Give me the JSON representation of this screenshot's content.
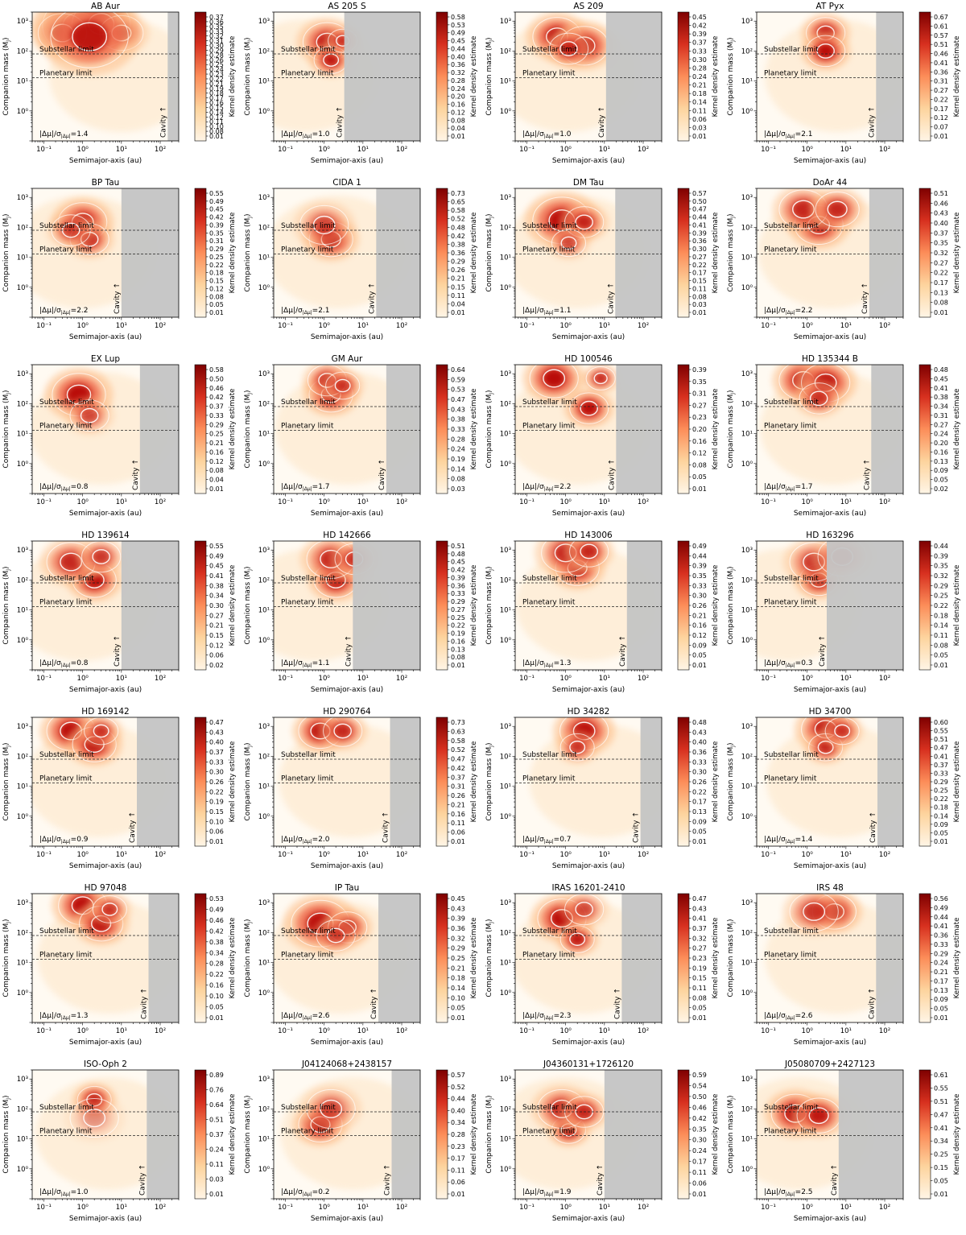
{
  "figure": {
    "xlabel": "Semimajor-axis (au)",
    "ylabel": "Companion mass (M",
    "ylabel_sub": "J",
    "ylabel_close": ")",
    "cbar_label": "Kernel density estimate",
    "substellar_label": "Substellar limit",
    "planetary_label": "Planetary limit",
    "cavity_label": "Cavity ↑",
    "colors": {
      "cavity": "#c4c4c4",
      "kde_low": "#fff5e6",
      "kde_high": "#7f0000",
      "contour": "#ffffff"
    }
  },
  "chart_data": {
    "type": "heatmap",
    "description_axis": "log-log KDE of companion mass vs semimajor axis",
    "x_axis": {
      "scale": "log",
      "range": [
        0.05,
        300
      ],
      "ticks": [
        0.1,
        1,
        10,
        100
      ],
      "tick_labels": [
        "10⁻¹",
        "10⁰",
        "10¹",
        "10²"
      ]
    },
    "y_axis": {
      "scale": "log",
      "range": [
        0.1,
        2000
      ],
      "ticks": [
        1,
        10,
        100,
        1000
      ],
      "tick_labels": [
        "10⁰",
        "10¹",
        "10²",
        "10³"
      ]
    },
    "substellar_limit_mj": 80,
    "planetary_limit_mj": 13,
    "panels": [
      {
        "title": "AB Aur",
        "cavity": 156,
        "ratio": "1.4",
        "cbar": [
          "0.37",
          "0.36",
          "0.35",
          "0.33",
          "0.32",
          "0.31",
          "0.30",
          "0.29",
          "0.28",
          "0.26",
          "0.25",
          "0.24",
          "0.23",
          "0.22",
          "0.21",
          "0.19",
          "0.18",
          "0.17",
          "0.16",
          "0.15",
          "0.14",
          "0.12",
          "0.11",
          "0.10",
          "0.08",
          "0.01"
        ],
        "blobs": [
          [
            0.8,
            700,
            0.75,
            1.0
          ],
          [
            3,
            800,
            0.6,
            1.0
          ],
          [
            0.3,
            400,
            0.5,
            0.8
          ],
          [
            10,
            400,
            0.45,
            0.7
          ],
          [
            1.5,
            300,
            0.8,
            0.9
          ]
        ]
      },
      {
        "title": "AS 205 S",
        "cavity": 3.3,
        "ratio": "1.0",
        "cbar": [
          "0.58",
          "0.53",
          "0.49",
          "0.45",
          "0.44",
          "0.40",
          "0.36",
          "0.32",
          "0.28",
          "0.24",
          "0.20",
          "0.16",
          "0.12",
          "0.08",
          "0.04",
          "0.01"
        ],
        "blobs": [
          [
            1.2,
            200,
            0.5,
            0.9
          ],
          [
            1.5,
            50,
            0.35,
            0.9
          ],
          [
            3,
            220,
            0.3,
            0.7
          ]
        ]
      },
      {
        "title": "AS 209",
        "cavity": 11,
        "ratio": "1.0",
        "cbar": [
          "0.45",
          "0.42",
          "0.39",
          "0.37",
          "0.33",
          "0.30",
          "0.28",
          "0.24",
          "0.21",
          "0.18",
          "0.14",
          "0.11",
          "0.06",
          "0.03",
          "0.01"
        ],
        "blobs": [
          [
            0.6,
            300,
            0.5,
            1.0
          ],
          [
            3,
            150,
            0.5,
            1.0
          ],
          [
            1.2,
            120,
            0.4,
            0.8
          ]
        ]
      },
      {
        "title": "AT Pyx",
        "cavity": 60,
        "ratio": "2.1",
        "cbar": [
          "0.67",
          "0.61",
          "0.57",
          "0.51",
          "0.46",
          "0.41",
          "0.36",
          "0.31",
          "0.27",
          "0.22",
          "0.17",
          "0.12",
          "0.07",
          "0.01"
        ],
        "blobs": [
          [
            3,
            400,
            0.4,
            0.9
          ],
          [
            3,
            100,
            0.4,
            1.0
          ]
        ]
      },
      {
        "title": "BP Tau",
        "cavity": 10,
        "ratio": "2.2",
        "cbar": [
          "0.55",
          "0.49",
          "0.45",
          "0.42",
          "0.39",
          "0.35",
          "0.31",
          "0.29",
          "0.25",
          "0.22",
          "0.18",
          "0.15",
          "0.12",
          "0.08",
          "0.05",
          "0.01"
        ],
        "blobs": [
          [
            1,
            150,
            0.5,
            1.0
          ],
          [
            1.5,
            40,
            0.4,
            0.8
          ],
          [
            0.5,
            80,
            0.4,
            0.6
          ]
        ]
      },
      {
        "title": "CIDA 1",
        "cavity": 22,
        "ratio": "2.1",
        "cbar": [
          "0.73",
          "0.65",
          "0.58",
          "0.52",
          "0.48",
          "0.42",
          "0.38",
          "0.36",
          "0.29",
          "0.26",
          "0.21",
          "0.15",
          "0.11",
          "0.04",
          "0.01"
        ],
        "blobs": [
          [
            1.5,
            40,
            0.45,
            1.0
          ],
          [
            1,
            120,
            0.5,
            0.6
          ]
        ]
      },
      {
        "title": "DM Tau",
        "cavity": 19,
        "ratio": "1.1",
        "cbar": [
          "0.57",
          "0.50",
          "0.47",
          "0.44",
          "0.41",
          "0.39",
          "0.36",
          "0.30",
          "0.27",
          "0.22",
          "0.17",
          "0.15",
          "0.11",
          "0.08",
          "0.03",
          "0.01"
        ],
        "blobs": [
          [
            0.8,
            170,
            0.6,
            1.0
          ],
          [
            3,
            150,
            0.4,
            0.8
          ],
          [
            1.2,
            30,
            0.35,
            0.6
          ]
        ]
      },
      {
        "title": "DoAr 44",
        "cavity": 40,
        "ratio": "2.2",
        "cbar": [
          "0.51",
          "0.46",
          "0.43",
          "0.40",
          "0.37",
          "0.35",
          "0.32",
          "0.27",
          "0.22",
          "0.17",
          "0.13",
          "0.08",
          "0.01"
        ],
        "blobs": [
          [
            2,
            120,
            0.5,
            1.0
          ],
          [
            0.8,
            400,
            0.5,
            0.8
          ],
          [
            6,
            400,
            0.45,
            0.8
          ]
        ]
      },
      {
        "title": "EX Lup",
        "cavity": 30,
        "ratio": "0.8",
        "cbar": [
          "0.58",
          "0.50",
          "0.46",
          "0.42",
          "0.37",
          "0.33",
          "0.29",
          "0.25",
          "0.21",
          "0.16",
          "0.12",
          "0.08",
          "0.04",
          "0.01"
        ],
        "blobs": [
          [
            0.8,
            200,
            0.55,
            1.0
          ],
          [
            1.5,
            40,
            0.4,
            0.6
          ]
        ]
      },
      {
        "title": "GM Aur",
        "cavity": 40,
        "ratio": "1.7",
        "cbar": [
          "0.64",
          "0.59",
          "0.53",
          "0.47",
          "0.43",
          "0.38",
          "0.33",
          "0.28",
          "0.24",
          "0.19",
          "0.14",
          "0.08",
          "0.03"
        ],
        "blobs": [
          [
            1.5,
            200,
            0.45,
            1.0
          ],
          [
            1.2,
            600,
            0.4,
            0.8
          ],
          [
            3,
            400,
            0.35,
            0.7
          ]
        ]
      },
      {
        "title": "HD 100546",
        "cavity": 20,
        "ratio": "2.2",
        "cbar": [
          "0.39",
          "0.35",
          "0.31",
          "0.27",
          "0.23",
          "0.20",
          "0.16",
          "0.12",
          "0.08",
          "0.05",
          "0.01"
        ],
        "blobs": [
          [
            0.5,
            700,
            0.5,
            1.0
          ],
          [
            4,
            70,
            0.4,
            1.0
          ],
          [
            8,
            700,
            0.3,
            0.8
          ]
        ]
      },
      {
        "title": "HD 135344 B",
        "cavity": 45,
        "ratio": "1.7",
        "cbar": [
          "0.48",
          "0.45",
          "0.41",
          "0.38",
          "0.34",
          "0.31",
          "0.27",
          "0.24",
          "0.20",
          "0.16",
          "0.13",
          "0.09",
          "0.05",
          "0.02"
        ],
        "blobs": [
          [
            0.8,
            600,
            0.5,
            1.0
          ],
          [
            3,
            500,
            0.5,
            1.0
          ],
          [
            2,
            150,
            0.4,
            0.7
          ]
        ]
      },
      {
        "title": "HD 139614",
        "cavity": 10,
        "ratio": "0.8",
        "cbar": [
          "0.55",
          "0.49",
          "0.45",
          "0.41",
          "0.38",
          "0.34",
          "0.30",
          "0.27",
          "0.21",
          "0.15",
          "0.12",
          "0.06",
          "0.02"
        ],
        "blobs": [
          [
            2,
            100,
            0.45,
            1.0
          ],
          [
            0.5,
            400,
            0.5,
            0.8
          ],
          [
            3,
            600,
            0.4,
            0.7
          ]
        ]
      },
      {
        "title": "HD 142666",
        "cavity": 5.5,
        "ratio": "1.1",
        "cbar": [
          "0.51",
          "0.48",
          "0.45",
          "0.42",
          "0.39",
          "0.36",
          "0.33",
          "0.29",
          "0.27",
          "0.25",
          "0.22",
          "0.19",
          "0.16",
          "0.13",
          "0.08",
          "0.01"
        ],
        "blobs": [
          [
            2,
            100,
            0.45,
            1.0
          ],
          [
            1.5,
            500,
            0.5,
            0.8
          ],
          [
            6,
            500,
            0.4,
            0.7
          ]
        ]
      },
      {
        "title": "HD 143006",
        "cavity": 38,
        "ratio": "1.3",
        "cbar": [
          "0.49",
          "0.44",
          "0.39",
          "0.35",
          "0.33",
          "0.30",
          "0.26",
          "0.21",
          "0.16",
          "0.12",
          "0.09",
          "0.05",
          "0.01"
        ],
        "blobs": [
          [
            2,
            250,
            0.45,
            1.0
          ],
          [
            1,
            800,
            0.5,
            0.8
          ],
          [
            4,
            900,
            0.4,
            0.8
          ]
        ]
      },
      {
        "title": "HD 163296",
        "cavity": 3.2,
        "ratio": "0.3",
        "cbar": [
          "0.44",
          "0.39",
          "0.35",
          "0.32",
          "0.29",
          "0.25",
          "0.22",
          "0.18",
          "0.14",
          "0.11",
          "0.08",
          "0.05",
          "0.01"
        ],
        "blobs": [
          [
            2,
            100,
            0.4,
            1.0
          ],
          [
            1.5,
            400,
            0.5,
            0.7
          ],
          [
            8,
            600,
            0.5,
            0.6
          ]
        ]
      },
      {
        "title": "HD 169142",
        "cavity": 25,
        "ratio": "0.9",
        "cbar": [
          "0.47",
          "0.43",
          "0.40",
          "0.37",
          "0.33",
          "0.30",
          "0.26",
          "0.22",
          "0.19",
          "0.15",
          "0.10",
          "0.06",
          "0.01"
        ],
        "blobs": [
          [
            0.5,
            700,
            0.5,
            1.0
          ],
          [
            2,
            250,
            0.45,
            1.0
          ],
          [
            3,
            700,
            0.35,
            0.7
          ]
        ]
      },
      {
        "title": "HD 290764",
        "cavity": 50,
        "ratio": "2.0",
        "cbar": [
          "0.73",
          "0.63",
          "0.58",
          "0.52",
          "0.47",
          "0.42",
          "0.37",
          "0.31",
          "0.26",
          "0.21",
          "0.16",
          "0.11",
          "0.06",
          "0.01"
        ],
        "blobs": [
          [
            0.8,
            700,
            0.45,
            1.0
          ],
          [
            3,
            700,
            0.4,
            0.8
          ]
        ]
      },
      {
        "title": "HD 34282",
        "cavity": 85,
        "ratio": "0.7",
        "cbar": [
          "0.48",
          "0.43",
          "0.40",
          "0.36",
          "0.33",
          "0.30",
          "0.26",
          "0.22",
          "0.17",
          "0.13",
          "0.09",
          "0.05",
          "0.01"
        ],
        "blobs": [
          [
            3,
            700,
            0.5,
            1.0
          ],
          [
            2,
            200,
            0.35,
            0.7
          ]
        ]
      },
      {
        "title": "HD 34700",
        "cavity": 65,
        "ratio": "1.4",
        "cbar": [
          "0.60",
          "0.55",
          "0.51",
          "0.47",
          "0.41",
          "0.37",
          "0.33",
          "0.29",
          "0.25",
          "0.22",
          "0.18",
          "0.14",
          "0.09",
          "0.05",
          "0.01"
        ],
        "blobs": [
          [
            3,
            800,
            0.5,
            1.0
          ],
          [
            3,
            200,
            0.35,
            0.8
          ],
          [
            8,
            700,
            0.35,
            0.7
          ]
        ]
      },
      {
        "title": "HD 97048",
        "cavity": 50,
        "ratio": "1.3",
        "cbar": [
          "0.53",
          "0.49",
          "0.46",
          "0.42",
          "0.38",
          "0.34",
          "0.28",
          "0.22",
          "0.16",
          "0.10",
          "0.05",
          "0.01"
        ],
        "blobs": [
          [
            1,
            800,
            0.5,
            1.0
          ],
          [
            3,
            200,
            0.45,
            1.0
          ],
          [
            5,
            600,
            0.35,
            0.7
          ]
        ]
      },
      {
        "title": "IP Tau",
        "cavity": 25,
        "ratio": "2.6",
        "cbar": [
          "0.45",
          "0.43",
          "0.39",
          "0.36",
          "0.32",
          "0.29",
          "0.25",
          "0.21",
          "0.18",
          "0.14",
          "0.10",
          "0.05",
          "0.01"
        ],
        "blobs": [
          [
            0.8,
            200,
            0.6,
            1.0
          ],
          [
            4,
            150,
            0.4,
            0.9
          ],
          [
            2,
            80,
            0.4,
            0.6
          ]
        ]
      },
      {
        "title": "IRAS 16201-2410",
        "cavity": 28,
        "ratio": "2.3",
        "cbar": [
          "0.47",
          "0.43",
          "0.41",
          "0.37",
          "0.32",
          "0.27",
          "0.23",
          "0.19",
          "0.15",
          "0.11",
          "0.08",
          "0.05",
          "0.01"
        ],
        "blobs": [
          [
            0.8,
            300,
            0.5,
            1.0
          ],
          [
            2,
            60,
            0.35,
            0.9
          ],
          [
            3,
            600,
            0.4,
            0.6
          ]
        ]
      },
      {
        "title": "IRS 48",
        "cavity": 60,
        "ratio": "2.6",
        "cbar": [
          "0.56",
          "0.49",
          "0.44",
          "0.41",
          "0.36",
          "0.33",
          "0.29",
          "0.24",
          "0.21",
          "0.17",
          "0.13",
          "0.09",
          "0.05",
          "0.01"
        ],
        "blobs": [
          [
            5,
            500,
            0.45,
            1.0
          ],
          [
            1.5,
            500,
            0.5,
            0.7
          ]
        ]
      },
      {
        "title": "ISO-Oph 2",
        "cavity": 45,
        "ratio": "1.0",
        "cbar": [
          "0.89",
          "0.76",
          "0.64",
          "0.51",
          "0.37",
          "0.24",
          "0.11",
          "0.03",
          "0.01"
        ],
        "blobs": [
          [
            2,
            200,
            0.35,
            1.0
          ],
          [
            2,
            50,
            0.5,
            0.3
          ]
        ]
      },
      {
        "title": "J04124068+2438157",
        "cavity": 55,
        "ratio": "0.2",
        "cbar": [
          "0.57",
          "0.52",
          "0.44",
          "0.40",
          "0.34",
          "0.28",
          "0.23",
          "0.17",
          "0.11",
          "0.06",
          "0.01"
        ],
        "blobs": [
          [
            0.8,
            30,
            0.45,
            1.0
          ],
          [
            1.5,
            100,
            0.5,
            0.6
          ]
        ]
      },
      {
        "title": "J04360131+1726120",
        "cavity": 10,
        "ratio": "1.9",
        "cbar": [
          "0.59",
          "0.54",
          "0.50",
          "0.46",
          "0.42",
          "0.35",
          "0.30",
          "0.24",
          "0.17",
          "0.11",
          "0.06",
          "0.01"
        ],
        "blobs": [
          [
            1.2,
            20,
            0.35,
            1.0
          ],
          [
            0.8,
            100,
            0.5,
            0.8
          ],
          [
            3,
            80,
            0.4,
            0.8
          ]
        ]
      },
      {
        "title": "J05080709+2427123",
        "cavity": 6.5,
        "ratio": "2.5",
        "cbar": [
          "0.61",
          "0.55",
          "0.51",
          "0.47",
          "0.41",
          "0.34",
          "0.25",
          "0.15",
          "0.05",
          "0.01"
        ],
        "blobs": [
          [
            0.5,
            70,
            0.5,
            1.0
          ],
          [
            2,
            60,
            0.45,
            0.9
          ]
        ]
      }
    ]
  }
}
